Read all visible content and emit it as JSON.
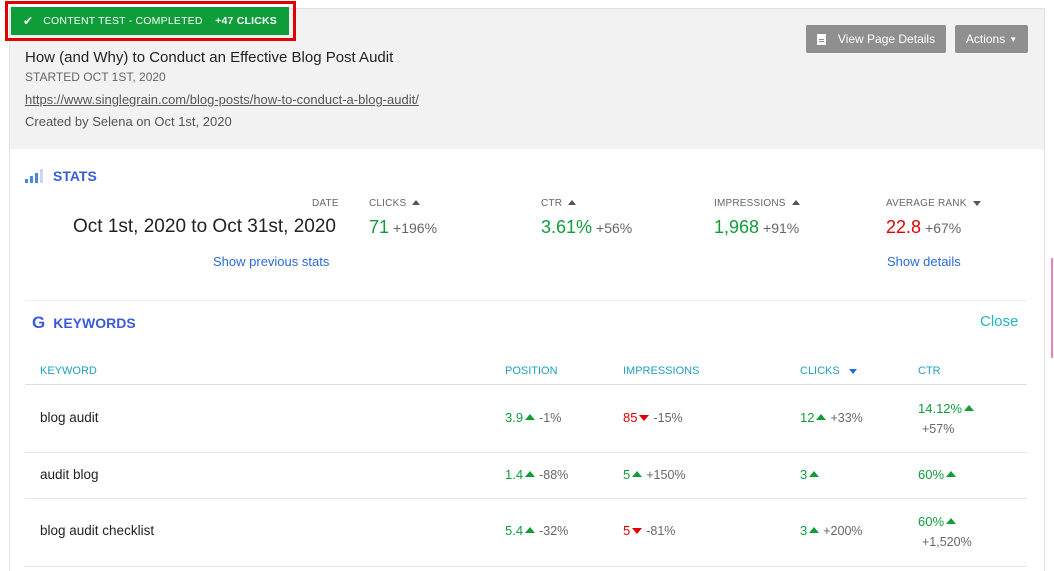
{
  "badge": {
    "status": "CONTENT TEST - COMPLETED",
    "clicks": "+47 CLICKS"
  },
  "header": {
    "title": "How (and Why) to Conduct an Effective Blog Post Audit",
    "started": "STARTED OCT 1ST, 2020",
    "url": "https://www.singlegrain.com/blog-posts/how-to-conduct-a-blog-audit/",
    "created": "Created by Selena on Oct 1st, 2020",
    "view_button": "View Page Details",
    "actions_button": "Actions"
  },
  "stats": {
    "section_title": "STATS",
    "date_label": "DATE",
    "date_range": "Oct 1st, 2020 to Oct 31st, 2020",
    "show_previous": "Show previous stats",
    "show_details": "Show details",
    "metrics": [
      {
        "label": "CLICKS",
        "value": "71",
        "delta": "+196%",
        "trend": "up",
        "color": "#0f9d3a"
      },
      {
        "label": "CTR",
        "value": "3.61%",
        "delta": "+56%",
        "trend": "up",
        "color": "#0f9d3a"
      },
      {
        "label": "IMPRESSIONS",
        "value": "1,968",
        "delta": "+91%",
        "trend": "up",
        "color": "#0f9d3a"
      },
      {
        "label": "AVERAGE RANK",
        "value": "22.8",
        "delta": "+67%",
        "trend": "down",
        "color": "#e00000"
      }
    ]
  },
  "keywords": {
    "section_title": "KEYWORDS",
    "close_label": "Close",
    "columns": [
      "KEYWORD",
      "POSITION",
      "IMPRESSIONS",
      "CLICKS",
      "CTR"
    ],
    "rows": [
      {
        "keyword": "blog audit",
        "position": "3.9",
        "position_delta": "-1%",
        "impressions": "85",
        "impressions_delta": "-15%",
        "clicks": "12",
        "clicks_delta": "+33%",
        "ctr": "14.12%",
        "ctr_delta": "+57%"
      },
      {
        "keyword": "audit blog",
        "position": "1.4",
        "position_delta": "-88%",
        "impressions": "5",
        "impressions_delta": "+150%",
        "clicks": "3",
        "clicks_delta": "",
        "ctr": "60%",
        "ctr_delta": ""
      },
      {
        "keyword": "blog audit checklist",
        "position": "5.4",
        "position_delta": "-32%",
        "impressions": "5",
        "impressions_delta": "-81%",
        "clicks": "3",
        "clicks_delta": "+200%",
        "ctr": "60%",
        "ctr_delta": "+1,520%"
      }
    ]
  },
  "colors": {
    "positive": "#0f9d3a",
    "negative": "#e00000",
    "link": "#2a6ad8",
    "accent": "#3b5bdb"
  }
}
